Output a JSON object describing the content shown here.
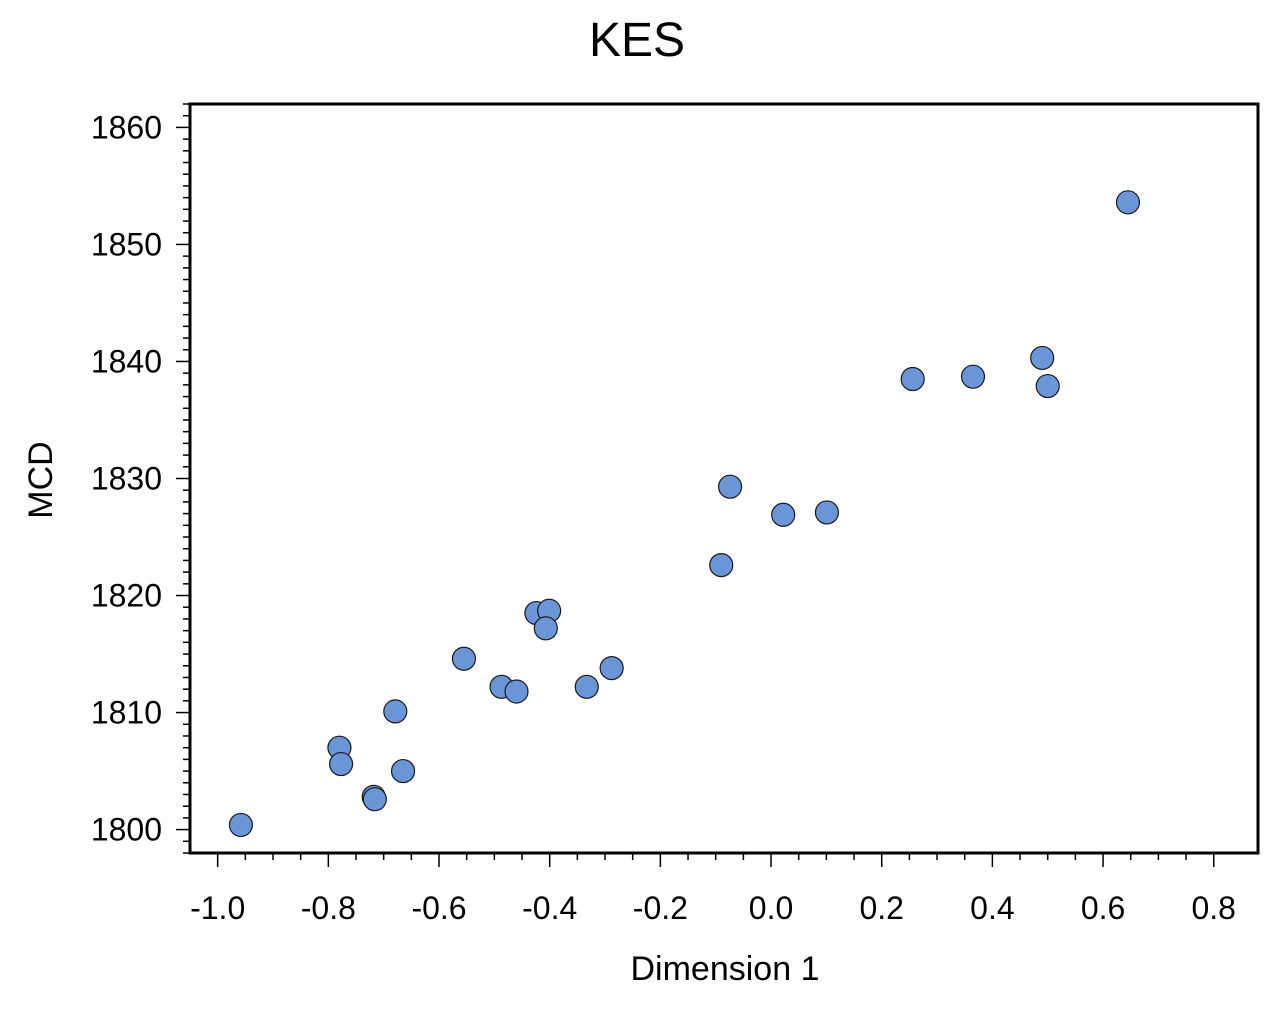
{
  "chart_data": {
    "type": "scatter",
    "title": "KES",
    "xlabel": "Dimension 1",
    "ylabel": "MCD",
    "xlim": [
      -1.05,
      0.88
    ],
    "ylim": [
      1798,
      1862
    ],
    "x_ticks": [
      -1.0,
      -0.8,
      -0.6,
      -0.4,
      -0.2,
      0.0,
      0.2,
      0.4,
      0.6,
      0.8
    ],
    "x_tick_labels": [
      "-1.0",
      "-0.8",
      "-0.6",
      "-0.4",
      "-0.2",
      "0.0",
      "0.2",
      "0.4",
      "0.6",
      "0.8"
    ],
    "y_ticks": [
      1800,
      1810,
      1820,
      1830,
      1840,
      1850,
      1860
    ],
    "y_tick_labels": [
      "1800",
      "1810",
      "1820",
      "1830",
      "1840",
      "1850",
      "1860"
    ],
    "grid": false,
    "legend": "none",
    "marker_color": "#6a95d6",
    "series": [
      {
        "x": [
          -0.958,
          -0.78,
          -0.777,
          -0.718,
          -0.716,
          -0.679,
          -0.665,
          -0.555,
          -0.487,
          -0.46,
          -0.424,
          -0.401,
          -0.407,
          -0.333,
          -0.288,
          -0.09,
          -0.074,
          0.022,
          0.101,
          0.256,
          0.365,
          0.49,
          0.5,
          0.645
        ],
        "y": [
          1800.4,
          1807.0,
          1805.6,
          1802.8,
          1802.6,
          1810.1,
          1805.0,
          1814.6,
          1812.2,
          1811.8,
          1818.5,
          1818.7,
          1817.2,
          1812.2,
          1813.8,
          1822.6,
          1829.3,
          1826.9,
          1827.1,
          1838.5,
          1838.7,
          1840.3,
          1837.9,
          1853.6
        ]
      }
    ]
  }
}
